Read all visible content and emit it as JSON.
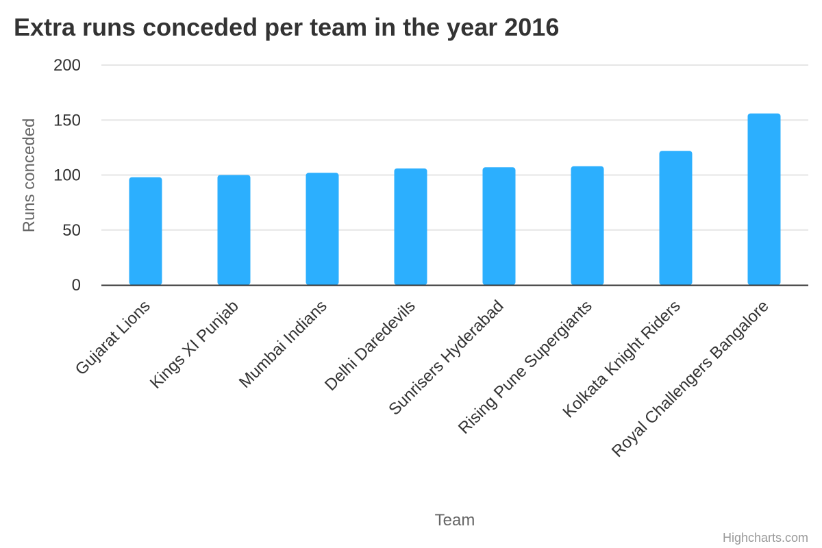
{
  "chart_data": {
    "type": "bar",
    "title": "Extra runs conceded per team in the year 2016",
    "xlabel": "Team",
    "ylabel": "Runs conceded",
    "categories": [
      "Gujarat Lions",
      "Kings XI Punjab",
      "Mumbai Indians",
      "Delhi Daredevils",
      "Sunrisers Hyderabad",
      "Rising Pune Supergiants",
      "Kolkata Knight Riders",
      "Royal Challengers Bangalore"
    ],
    "values": [
      98,
      100,
      102,
      106,
      107,
      108,
      122,
      156
    ],
    "ylim": [
      0,
      200
    ],
    "yticks": [
      "0",
      "50",
      "100",
      "150",
      "200"
    ],
    "grid": true,
    "legend": "none",
    "bar_color": "#2caffe",
    "credits": "Highcharts.com"
  }
}
